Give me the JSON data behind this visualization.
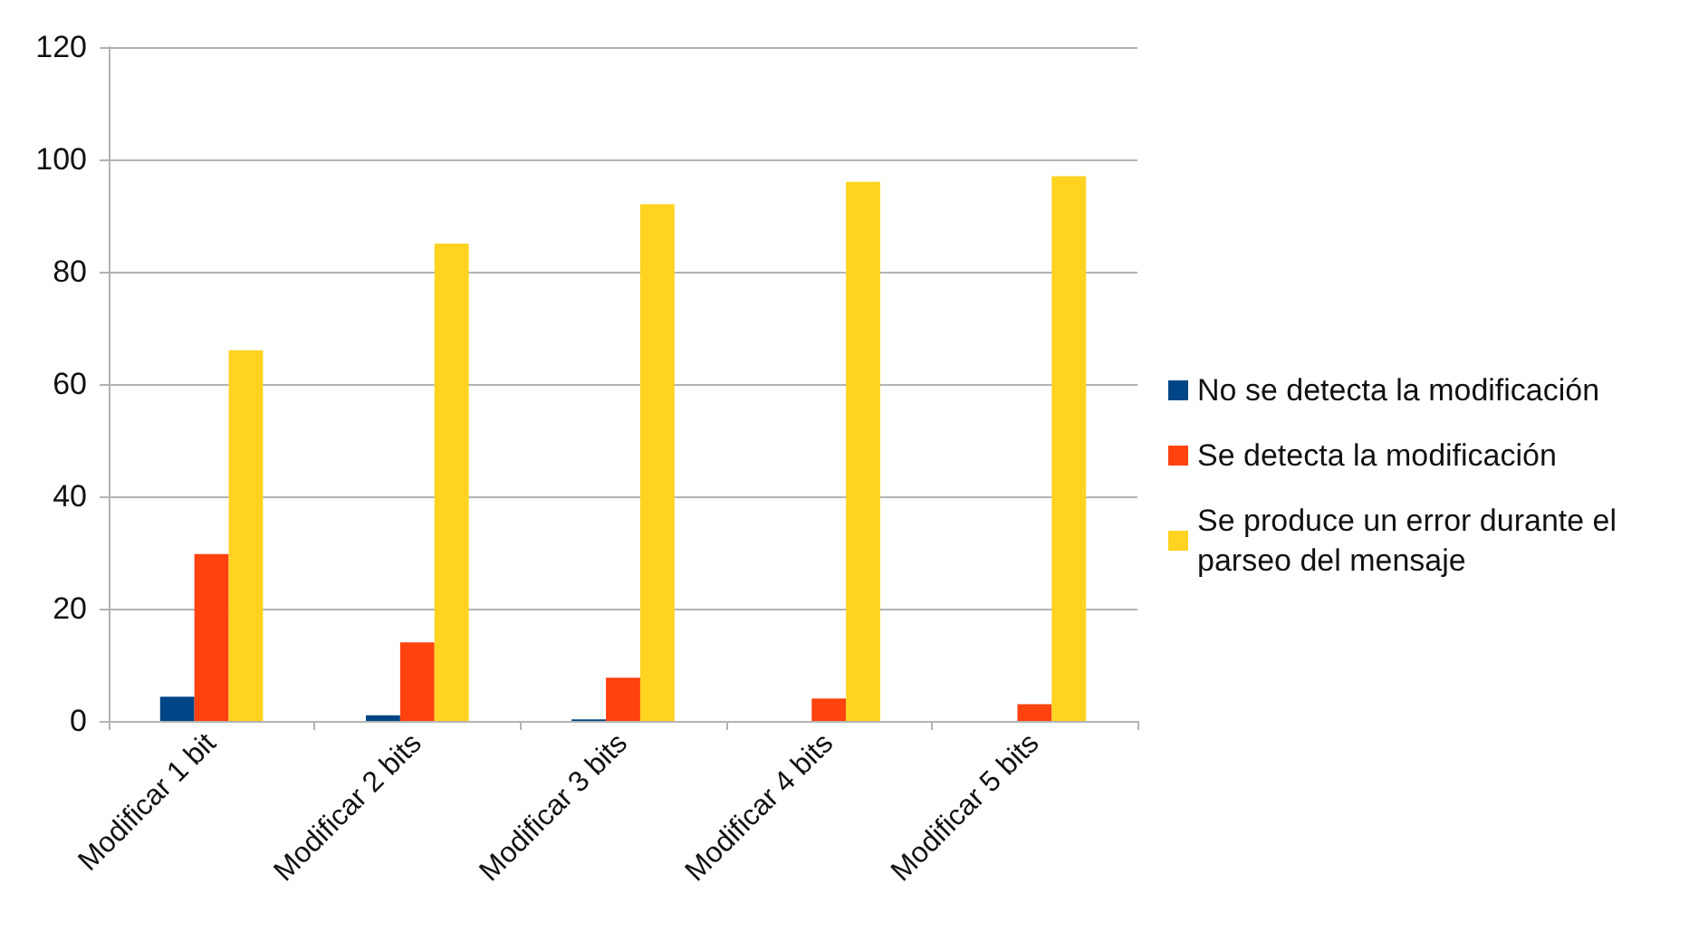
{
  "chart_data": {
    "type": "bar",
    "categories": [
      "Modificar 1 bit",
      "Modificar 2 bits",
      "Modificar 3 bits",
      "Modificar 4 bits",
      "Modificar 5 bits"
    ],
    "series": [
      {
        "name": "No se detecta la modificación",
        "color": "#004586",
        "values": [
          4.3,
          1,
          0.3,
          0,
          0
        ]
      },
      {
        "name": "Se detecta la modificación",
        "color": "#ff420e",
        "values": [
          29.7,
          14,
          7.7,
          4,
          3
        ]
      },
      {
        "name": "Se produce un error durante el parseo del mensaje",
        "color": "#ffd320",
        "values": [
          66,
          85,
          92,
          96,
          97
        ]
      }
    ],
    "ylim": [
      0,
      120
    ],
    "yticks": [
      0,
      20,
      40,
      60,
      80,
      100,
      120
    ],
    "grid": "y",
    "legend": "right"
  }
}
